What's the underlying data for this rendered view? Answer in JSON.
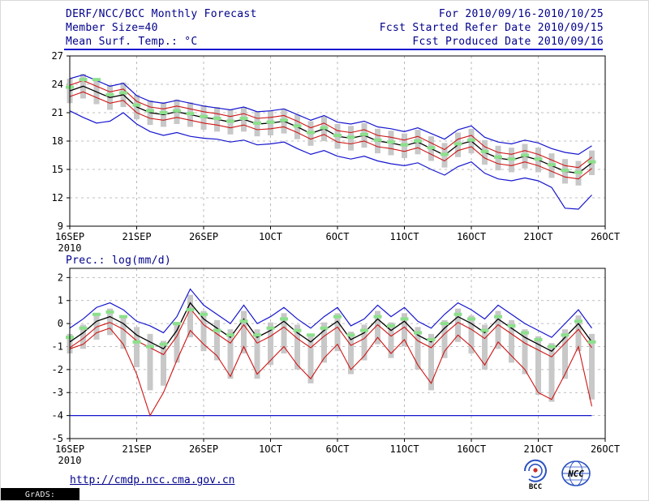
{
  "header": {
    "title": "DERF/NCC/BCC Monthly Forecast",
    "member_size": "Member Size=40",
    "for_range": "For 2010/09/16-2010/10/25",
    "refer_date": "Fcst Started Refer Date 2010/09/15",
    "produced_date": "Fcst Produced Date 2010/09/16"
  },
  "footer": {
    "url": "http://cmdp.ncc.cma.gov.cn",
    "credit": "GrADS: COLA/IGES",
    "bcc_logo_label": "BCC",
    "ncc_logo_label": "NCC"
  },
  "colors": {
    "header_text": "#00008b",
    "envelope": "#1515cf",
    "quartile": "#cf1515",
    "mean": "#000000",
    "observation": "#8ce08c",
    "bars": "#c8c8c8"
  },
  "chart_data": [
    {
      "type": "line",
      "title": "Mean Surf. Temp.: °C",
      "ylim": [
        9,
        27
      ],
      "yticks": [
        9,
        12,
        15,
        18,
        21,
        24,
        27
      ],
      "x_days": 40,
      "grid": true,
      "xticks": [
        {
          "day": 0,
          "label": "16SEP",
          "sub": "2010"
        },
        {
          "day": 5,
          "label": "21SEP"
        },
        {
          "day": 10,
          "label": "26SEP"
        },
        {
          "day": 15,
          "label": "1OCT"
        },
        {
          "day": 20,
          "label": "6OCT"
        },
        {
          "day": 25,
          "label": "11OCT"
        },
        {
          "day": 30,
          "label": "16OCT"
        },
        {
          "day": 35,
          "label": "21OCT"
        },
        {
          "day": 40,
          "label": "26OCT"
        }
      ],
      "bars": {
        "color": "#c8c8c8",
        "width": 7,
        "hi": [
          24.6,
          25.1,
          24.5,
          23.9,
          24.2,
          22.9,
          22.3,
          22.1,
          22.4,
          22.1,
          21.8,
          21.6,
          21.3,
          21.6,
          21.1,
          21.2,
          21.4,
          20.8,
          20.1,
          20.6,
          19.8,
          19.6,
          19.9,
          19.3,
          19.1,
          18.8,
          19.2,
          18.5,
          17.8,
          18.9,
          19.3,
          18.1,
          17.5,
          17.3,
          17.7,
          17.3,
          16.7,
          16.1,
          15.9,
          17.0
        ],
        "lo": [
          22.0,
          22.5,
          21.9,
          21.3,
          21.6,
          20.3,
          19.7,
          19.5,
          19.8,
          19.5,
          19.2,
          19.0,
          18.7,
          19.0,
          18.5,
          18.6,
          18.8,
          18.2,
          17.5,
          18.0,
          17.2,
          17.0,
          17.3,
          16.7,
          16.5,
          16.2,
          16.6,
          15.9,
          15.2,
          16.3,
          16.7,
          15.5,
          14.9,
          14.7,
          15.1,
          14.7,
          14.1,
          13.5,
          13.3,
          14.4
        ]
      },
      "series": [
        {
          "name": "ensemble-max",
          "color": "#1515cf",
          "width": 1.2,
          "values": [
            24.6,
            25.0,
            24.4,
            23.8,
            24.1,
            22.8,
            22.2,
            22.0,
            22.3,
            22.0,
            21.7,
            21.5,
            21.3,
            21.6,
            21.1,
            21.2,
            21.4,
            20.8,
            20.2,
            20.7,
            20.0,
            19.8,
            20.1,
            19.5,
            19.3,
            19.0,
            19.4,
            18.8,
            18.2,
            19.2,
            19.6,
            18.4,
            17.9,
            17.7,
            18.1,
            17.8,
            17.2,
            16.8,
            16.6,
            17.5
          ]
        },
        {
          "name": "ensemble-min",
          "color": "#1515cf",
          "width": 1.2,
          "values": [
            21.2,
            20.5,
            19.9,
            20.1,
            21.0,
            19.8,
            19.0,
            18.6,
            18.9,
            18.5,
            18.3,
            18.2,
            17.9,
            18.1,
            17.6,
            17.7,
            17.9,
            17.2,
            16.6,
            17.0,
            16.4,
            16.1,
            16.4,
            15.9,
            15.6,
            15.4,
            15.7,
            15.0,
            14.4,
            15.3,
            15.8,
            14.6,
            14.0,
            13.8,
            14.1,
            13.8,
            13.1,
            10.9,
            10.8,
            12.3
          ]
        },
        {
          "name": "upper-quartile",
          "color": "#cf1515",
          "width": 1.1,
          "values": [
            23.9,
            24.4,
            23.8,
            23.2,
            23.5,
            22.2,
            21.6,
            21.4,
            21.7,
            21.4,
            21.1,
            20.9,
            20.6,
            20.9,
            20.4,
            20.5,
            20.7,
            20.1,
            19.4,
            19.9,
            19.1,
            18.9,
            19.2,
            18.6,
            18.4,
            18.1,
            18.5,
            17.8,
            17.1,
            18.2,
            18.6,
            17.4,
            16.8,
            16.6,
            17.0,
            16.6,
            16.0,
            15.4,
            15.2,
            16.3
          ]
        },
        {
          "name": "lower-quartile",
          "color": "#cf1515",
          "width": 1.1,
          "values": [
            22.7,
            23.2,
            22.6,
            22.0,
            22.3,
            21.0,
            20.4,
            20.2,
            20.5,
            20.2,
            19.9,
            19.7,
            19.4,
            19.7,
            19.2,
            19.3,
            19.5,
            18.9,
            18.2,
            18.7,
            17.9,
            17.7,
            18.0,
            17.4,
            17.2,
            16.9,
            17.3,
            16.6,
            15.9,
            17.0,
            17.4,
            16.2,
            15.6,
            15.4,
            15.8,
            15.4,
            14.8,
            14.2,
            14.0,
            15.1
          ]
        },
        {
          "name": "ensemble-mean",
          "color": "#000000",
          "width": 1.3,
          "values": [
            23.3,
            23.8,
            23.2,
            22.6,
            22.9,
            21.6,
            21.0,
            20.8,
            21.1,
            20.8,
            20.5,
            20.3,
            20.0,
            20.3,
            19.8,
            19.9,
            20.1,
            19.5,
            18.8,
            19.3,
            18.5,
            18.3,
            18.6,
            18.0,
            17.8,
            17.5,
            17.9,
            17.2,
            16.5,
            17.6,
            18.0,
            16.8,
            16.2,
            16.0,
            16.4,
            16.0,
            15.4,
            14.8,
            14.6,
            15.7
          ]
        },
        {
          "name": "observation",
          "color": "#8ce08c",
          "width": 4,
          "style": "dashes",
          "values": [
            23.7,
            24.5,
            24.5,
            22.9,
            23.1,
            21.8,
            21.2,
            21.0,
            21.2,
            20.9,
            20.6,
            20.4,
            20.1,
            20.4,
            19.9,
            20.0,
            20.2,
            19.6,
            18.9,
            19.4,
            18.6,
            18.4,
            18.7,
            18.1,
            17.9,
            17.6,
            18.0,
            17.3,
            16.6,
            17.7,
            18.1,
            16.9,
            16.3,
            16.1,
            16.5,
            16.1,
            15.5,
            14.9,
            14.7,
            15.8
          ]
        }
      ]
    },
    {
      "type": "line",
      "title": "Prec.: log(mm/d)",
      "ylim": [
        -5,
        2.4
      ],
      "yticks": [
        -5,
        -4,
        -3,
        -2,
        -1,
        0,
        1,
        2
      ],
      "x_days": 40,
      "grid": true,
      "hline": {
        "y": -4,
        "color": "#1515cf"
      },
      "xticks": [
        {
          "day": 0,
          "label": "16SEP",
          "sub": "2010"
        },
        {
          "day": 5,
          "label": "21SEP"
        },
        {
          "day": 10,
          "label": "26SEP"
        },
        {
          "day": 15,
          "label": "1OCT"
        },
        {
          "day": 20,
          "label": "6OCT"
        },
        {
          "day": 25,
          "label": "11OCT"
        },
        {
          "day": 30,
          "label": "16OCT"
        },
        {
          "day": 35,
          "label": "21OCT"
        },
        {
          "day": 40,
          "label": "26OCT"
        }
      ],
      "bars": {
        "color": "#c8c8c8",
        "width": 7,
        "hi": [
          -0.45,
          -0.05,
          0.45,
          0.65,
          0.35,
          -0.15,
          -0.45,
          -0.75,
          0.05,
          1.25,
          0.55,
          0.15,
          -0.25,
          0.55,
          -0.25,
          0.05,
          0.45,
          -0.05,
          -0.45,
          0.05,
          0.45,
          -0.35,
          -0.05,
          0.55,
          0.05,
          0.45,
          -0.15,
          -0.45,
          0.15,
          0.65,
          0.35,
          -0.05,
          0.55,
          0.15,
          -0.25,
          -0.55,
          -0.85,
          -0.25,
          0.35,
          -0.45
        ],
        "lo": [
          -1.3,
          -1.1,
          -0.7,
          -0.5,
          -1.1,
          -1.9,
          -2.9,
          -2.7,
          -1.7,
          -0.6,
          -1.2,
          -1.6,
          -2.4,
          -1.3,
          -2.4,
          -1.8,
          -1.3,
          -2.0,
          -2.6,
          -1.7,
          -1.2,
          -2.2,
          -1.6,
          -0.9,
          -1.5,
          -1.0,
          -2.0,
          -2.9,
          -1.5,
          -0.8,
          -1.3,
          -2.0,
          -1.1,
          -1.7,
          -2.2,
          -3.1,
          -3.4,
          -2.4,
          -1.2,
          -3.3
        ]
      },
      "series": [
        {
          "name": "ensemble-max",
          "color": "#1515cf",
          "width": 1.2,
          "values": [
            -0.2,
            0.2,
            0.7,
            0.9,
            0.6,
            0.1,
            -0.1,
            -0.4,
            0.3,
            1.5,
            0.8,
            0.4,
            0.0,
            0.8,
            0.0,
            0.3,
            0.7,
            0.2,
            -0.2,
            0.3,
            0.7,
            -0.1,
            0.2,
            0.8,
            0.3,
            0.7,
            0.1,
            -0.2,
            0.4,
            0.9,
            0.6,
            0.2,
            0.8,
            0.4,
            0.0,
            -0.3,
            -0.6,
            0.0,
            0.6,
            -0.2
          ]
        },
        {
          "name": "upper-quartile",
          "color": "#cf1515",
          "width": 1.1,
          "values": [
            -1.05,
            -0.65,
            -0.15,
            0.05,
            -0.25,
            -0.75,
            -1.05,
            -1.35,
            -0.55,
            0.65,
            -0.05,
            -0.45,
            -0.85,
            -0.05,
            -0.85,
            -0.55,
            -0.15,
            -0.65,
            -1.05,
            -0.55,
            -0.15,
            -0.95,
            -0.65,
            -0.05,
            -0.55,
            -0.15,
            -0.75,
            -1.05,
            -0.45,
            0.05,
            -0.25,
            -0.65,
            -0.05,
            -0.45,
            -0.85,
            -1.15,
            -1.45,
            -0.85,
            -0.25,
            -1.05
          ]
        },
        {
          "name": "lower-quartile",
          "color": "#cf1515",
          "width": 1.1,
          "values": [
            -1.1,
            -0.9,
            -0.4,
            -0.2,
            -0.9,
            -2.2,
            -4.0,
            -3.0,
            -1.6,
            -0.3,
            -0.9,
            -1.4,
            -2.3,
            -1.0,
            -2.2,
            -1.6,
            -1.0,
            -1.8,
            -2.4,
            -1.5,
            -0.9,
            -2.0,
            -1.4,
            -0.6,
            -1.3,
            -0.7,
            -1.8,
            -2.6,
            -1.2,
            -0.5,
            -1.0,
            -1.8,
            -0.8,
            -1.4,
            -2.0,
            -3.0,
            -3.3,
            -2.2,
            -1.0,
            -3.6
          ]
        },
        {
          "name": "ensemble-mean",
          "color": "#000000",
          "width": 1.3,
          "values": [
            -0.8,
            -0.4,
            0.1,
            0.3,
            0.0,
            -0.5,
            -0.8,
            -1.1,
            -0.3,
            0.9,
            0.2,
            -0.2,
            -0.6,
            0.2,
            -0.6,
            -0.3,
            0.1,
            -0.4,
            -0.8,
            -0.3,
            0.1,
            -0.7,
            -0.4,
            0.2,
            -0.3,
            0.1,
            -0.5,
            -0.8,
            -0.2,
            0.3,
            0.0,
            -0.4,
            0.2,
            -0.2,
            -0.6,
            -0.9,
            -1.2,
            -0.6,
            0.0,
            -0.8
          ]
        },
        {
          "name": "observation",
          "color": "#8ce08c",
          "width": 4,
          "style": "dashes",
          "values": [
            -0.6,
            -0.2,
            0.4,
            0.5,
            0.3,
            -0.8,
            -1.0,
            -0.9,
            0.0,
            0.6,
            0.4,
            -0.3,
            -0.5,
            0.1,
            -0.5,
            -0.2,
            0.2,
            -0.3,
            -0.5,
            -0.2,
            0.3,
            -0.5,
            -0.3,
            0.3,
            -0.1,
            0.2,
            -0.4,
            -0.7,
            0.0,
            0.4,
            0.2,
            -0.3,
            0.3,
            -0.1,
            -0.4,
            -0.7,
            -1.0,
            -0.5,
            0.1,
            -0.8
          ]
        }
      ]
    }
  ]
}
